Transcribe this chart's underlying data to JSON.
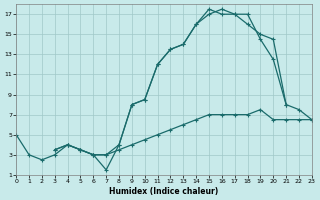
{
  "bg_color": "#c8eaea",
  "grid_color": "#a0c8c8",
  "line_color": "#1a6b6b",
  "xlabel": "Humidex (Indice chaleur)",
  "xlim": [
    0,
    23
  ],
  "ylim": [
    1,
    18
  ],
  "xticks": [
    0,
    1,
    2,
    3,
    4,
    5,
    6,
    7,
    8,
    9,
    10,
    11,
    12,
    13,
    14,
    15,
    16,
    17,
    18,
    19,
    20,
    21,
    22,
    23
  ],
  "yticks": [
    1,
    3,
    5,
    7,
    9,
    11,
    13,
    15,
    17
  ],
  "line1_x": [
    0,
    1,
    2,
    3,
    4,
    5,
    6,
    7,
    8,
    9,
    10,
    11,
    12,
    13,
    14,
    15,
    16,
    17,
    18,
    19,
    20,
    21
  ],
  "line1_y": [
    5,
    3,
    2.5,
    3,
    4,
    3.5,
    3,
    1.5,
    4,
    8,
    8.5,
    12,
    13.5,
    14,
    16,
    17,
    17.5,
    17,
    17,
    14.5,
    12.5,
    8
  ],
  "line2_x": [
    3,
    4,
    5,
    6,
    7,
    8,
    9,
    10,
    11,
    12,
    13,
    14,
    15,
    16,
    17,
    18,
    19,
    20,
    21,
    22,
    23
  ],
  "line2_y": [
    3.5,
    4,
    3.5,
    3,
    3,
    3.5,
    4,
    4.5,
    5,
    5.5,
    6,
    6.5,
    7,
    7,
    7,
    7,
    7.5,
    6.5,
    6.5,
    6.5,
    6.5
  ],
  "line3_x": [
    3,
    4,
    5,
    6,
    7,
    8,
    9,
    10,
    11,
    12,
    13,
    14,
    15,
    16,
    17,
    18,
    19,
    20,
    21,
    22,
    23
  ],
  "line3_y": [
    3.5,
    4,
    3.5,
    3,
    3,
    4,
    8,
    8.5,
    12,
    13.5,
    14,
    16,
    17.5,
    17,
    17,
    16,
    15,
    14.5,
    8,
    7.5,
    6.5
  ]
}
